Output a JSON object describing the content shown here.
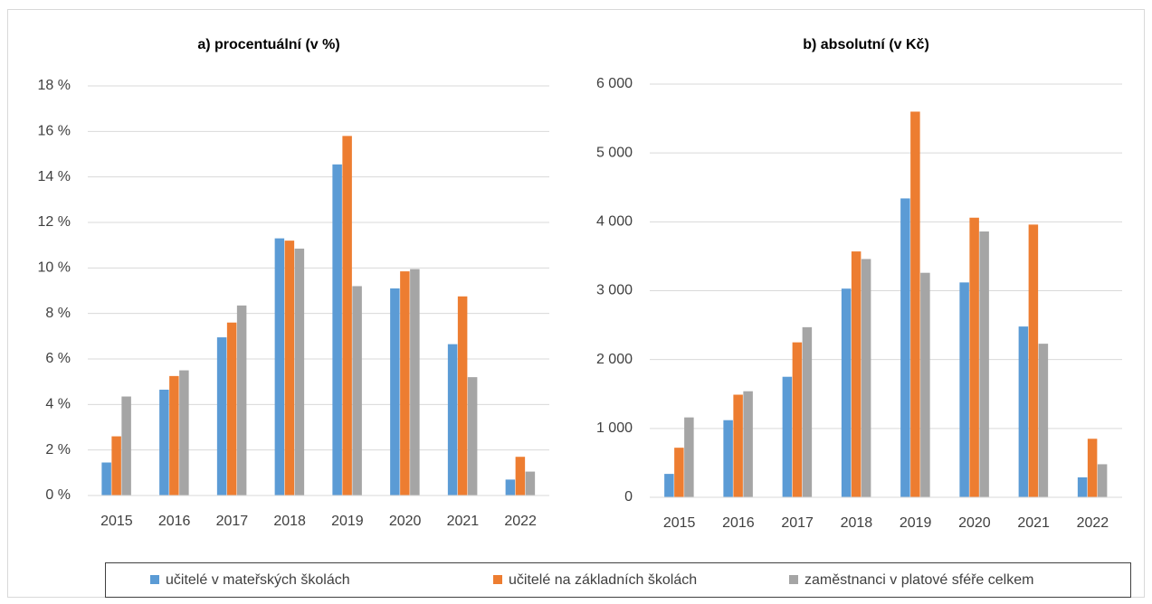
{
  "chart_data": [
    {
      "type": "bar",
      "title": "a) procentuální (v %)",
      "categories": [
        "2015",
        "2016",
        "2017",
        "2018",
        "2019",
        "2020",
        "2021",
        "2022"
      ],
      "series": [
        {
          "name": "učitelé v mateřských školách",
          "color": "#5b9bd5",
          "values": [
            1.45,
            4.65,
            6.95,
            11.3,
            14.55,
            9.1,
            6.65,
            0.7
          ]
        },
        {
          "name": "učitelé na základních školách",
          "color": "#ed7d31",
          "values": [
            2.6,
            5.25,
            7.6,
            11.2,
            15.8,
            9.85,
            8.75,
            1.7
          ]
        },
        {
          "name": "zaměstnanci v platové sféře celkem",
          "color": "#a5a5a5",
          "values": [
            4.35,
            5.5,
            8.35,
            10.85,
            9.2,
            9.95,
            5.2,
            1.05
          ]
        }
      ],
      "ylim": [
        0,
        18
      ],
      "yticks": [
        {
          "value": 0,
          "label": "0 %"
        },
        {
          "value": 2,
          "label": "2 %"
        },
        {
          "value": 4,
          "label": "4 %"
        },
        {
          "value": 6,
          "label": "6 %"
        },
        {
          "value": 8,
          "label": "8 %"
        },
        {
          "value": 10,
          "label": "10 %"
        },
        {
          "value": 12,
          "label": "12 %"
        },
        {
          "value": 14,
          "label": "14 %"
        },
        {
          "value": 16,
          "label": "16 %"
        },
        {
          "value": 18,
          "label": "18 %"
        }
      ],
      "grid": true
    },
    {
      "type": "bar",
      "title": "b) absolutní (v Kč)",
      "categories": [
        "2015",
        "2016",
        "2017",
        "2018",
        "2019",
        "2020",
        "2021",
        "2022"
      ],
      "series": [
        {
          "color": "#5b9bd5",
          "values": [
            340,
            1120,
            1750,
            3030,
            4340,
            3120,
            2480,
            290
          ]
        },
        {
          "color": "#ed7d31",
          "values": [
            720,
            1490,
            2250,
            3570,
            5600,
            4060,
            3960,
            850
          ]
        },
        {
          "color": "#a5a5a5",
          "values": [
            1160,
            1540,
            2470,
            3460,
            3260,
            3860,
            2230,
            480
          ]
        }
      ],
      "ylim": [
        0,
        6000
      ],
      "yticks": [
        0,
        {
          "value": 1000,
          "label": "1 000"
        },
        {
          "value": 2000,
          "label": "2 000"
        },
        {
          "value": 3000,
          "label": "3 000"
        },
        {
          "value": 4000,
          "label": "4 000"
        },
        {
          "value": 5000,
          "label": "5 000"
        },
        {
          "value": 6000,
          "label": "6 000"
        }
      ],
      "grid": true
    }
  ]
}
